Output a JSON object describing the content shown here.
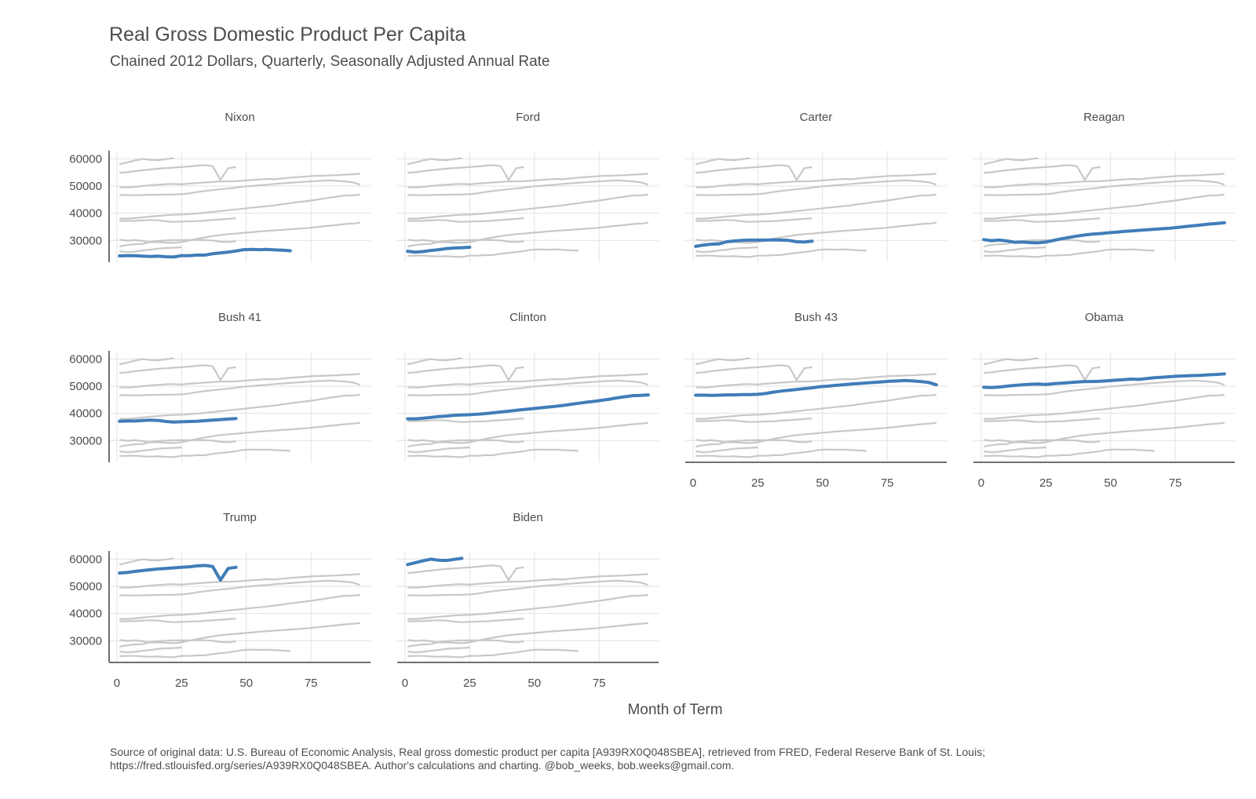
{
  "title": "Real Gross Domestic Product Per Capita",
  "subtitle": "Chained 2012 Dollars, Quarterly, Seasonally Adjusted Annual Rate",
  "xlabel": "Month of Term",
  "caption": [
    "Source of original data: U.S. Bureau of Economic Analysis, Real gross domestic product per capita [A939RX0Q048SBEA], retrieved from FRED, Federal Reserve Bank of St. Louis;",
    "https://fred.stlouisfed.org/series/A939RX0Q048SBEA. Author's calculations and charting. @bob_weeks, bob.weeks@gmail.com."
  ],
  "colors": {
    "highlight": "#3f7db8",
    "background_series": "#c8c8c8",
    "grid": "#e2e2e2",
    "axis": "#707070"
  },
  "chart_data": {
    "type": "line",
    "layout": "small multiples, 4 columns; each panel highlights one president's term against all others",
    "x_ticks": [
      0,
      25,
      50,
      75
    ],
    "y_ticks": [
      30000,
      40000,
      50000,
      60000
    ],
    "xlim": [
      -3,
      98
    ],
    "ylim": [
      22000,
      63000
    ],
    "grid": true,
    "series": [
      {
        "name": "Nixon",
        "x": [
          1,
          4,
          7,
          10,
          13,
          16,
          19,
          22,
          25,
          28,
          31,
          34,
          37,
          40,
          43,
          46,
          49,
          52,
          55,
          58,
          61,
          64,
          67
        ],
        "y": [
          24300,
          24400,
          24400,
          24200,
          24100,
          24200,
          24000,
          23900,
          24400,
          24400,
          24600,
          24600,
          25100,
          25400,
          25700,
          26100,
          26600,
          26700,
          26600,
          26700,
          26500,
          26400,
          26200
        ]
      },
      {
        "name": "Ford",
        "x": [
          1,
          4,
          7,
          10,
          13,
          16,
          19,
          22,
          25
        ],
        "y": [
          26000,
          25700,
          25900,
          26300,
          26600,
          27000,
          27200,
          27300,
          27500
        ]
      },
      {
        "name": "Carter",
        "x": [
          1,
          4,
          7,
          10,
          13,
          16,
          19,
          22,
          25,
          28,
          31,
          34,
          37,
          40,
          43,
          46
        ],
        "y": [
          27800,
          28300,
          28600,
          28700,
          29500,
          29800,
          30000,
          30100,
          30100,
          30100,
          30200,
          30100,
          30000,
          29500,
          29400,
          29700
        ]
      },
      {
        "name": "Reagan",
        "x": [
          1,
          4,
          7,
          10,
          13,
          16,
          19,
          22,
          25,
          28,
          31,
          34,
          37,
          40,
          43,
          46,
          49,
          52,
          55,
          58,
          61,
          64,
          67,
          70,
          73,
          76,
          79,
          82,
          85,
          88,
          91,
          94
        ],
        "y": [
          30300,
          29900,
          30100,
          29800,
          29300,
          29400,
          29200,
          29100,
          29400,
          30000,
          30600,
          31100,
          31600,
          32000,
          32300,
          32500,
          32800,
          33000,
          33300,
          33500,
          33700,
          33900,
          34100,
          34300,
          34500,
          34800,
          35100,
          35400,
          35700,
          36000,
          36200,
          36500
        ]
      },
      {
        "name": "Bush 41",
        "x": [
          1,
          4,
          7,
          10,
          13,
          16,
          19,
          22,
          25,
          28,
          31,
          34,
          37,
          40,
          43,
          46
        ],
        "y": [
          37100,
          37200,
          37200,
          37400,
          37500,
          37400,
          37000,
          36800,
          36900,
          37000,
          37100,
          37300,
          37500,
          37700,
          37900,
          38100
        ]
      },
      {
        "name": "Clinton",
        "x": [
          1,
          4,
          7,
          10,
          13,
          16,
          19,
          22,
          25,
          28,
          31,
          34,
          37,
          40,
          43,
          46,
          49,
          52,
          55,
          58,
          61,
          64,
          67,
          70,
          73,
          76,
          79,
          82,
          85,
          88,
          91,
          94
        ],
        "y": [
          38000,
          38000,
          38200,
          38500,
          38800,
          39000,
          39300,
          39400,
          39500,
          39700,
          39900,
          40200,
          40500,
          40800,
          41100,
          41400,
          41700,
          42000,
          42300,
          42600,
          42900,
          43300,
          43700,
          44100,
          44400,
          44800,
          45200,
          45700,
          46100,
          46500,
          46600,
          46800
        ]
      },
      {
        "name": "Bush 43",
        "x": [
          1,
          4,
          7,
          10,
          13,
          16,
          19,
          22,
          25,
          28,
          31,
          34,
          37,
          40,
          43,
          46,
          49,
          52,
          55,
          58,
          61,
          64,
          67,
          70,
          73,
          76,
          79,
          82,
          85,
          88,
          91,
          94
        ],
        "y": [
          46700,
          46700,
          46600,
          46700,
          46800,
          46800,
          46900,
          46900,
          47000,
          47300,
          47800,
          48200,
          48500,
          48800,
          49100,
          49400,
          49800,
          50000,
          50300,
          50500,
          50800,
          51000,
          51200,
          51400,
          51600,
          51800,
          51900,
          52100,
          51900,
          51700,
          51400,
          50500
        ]
      },
      {
        "name": "Obama",
        "x": [
          1,
          4,
          7,
          10,
          13,
          16,
          19,
          22,
          25,
          28,
          31,
          34,
          37,
          40,
          43,
          46,
          49,
          52,
          55,
          58,
          61,
          64,
          67,
          70,
          73,
          76,
          79,
          82,
          85,
          88,
          91,
          94
        ],
        "y": [
          49600,
          49500,
          49700,
          50000,
          50300,
          50500,
          50700,
          50800,
          50600,
          50900,
          51100,
          51300,
          51500,
          51700,
          51700,
          51800,
          52000,
          52200,
          52400,
          52600,
          52500,
          52800,
          53100,
          53300,
          53500,
          53700,
          53800,
          53900,
          54000,
          54200,
          54300,
          54500
        ]
      },
      {
        "name": "Trump",
        "x": [
          1,
          4,
          7,
          10,
          13,
          16,
          19,
          22,
          25,
          28,
          31,
          34,
          37,
          40,
          43,
          46
        ],
        "y": [
          54900,
          55100,
          55500,
          55800,
          56100,
          56400,
          56600,
          56800,
          57000,
          57200,
          57500,
          57700,
          57300,
          52300,
          56600,
          57000
        ]
      },
      {
        "name": "Biden",
        "x": [
          1,
          4,
          7,
          10,
          13,
          16,
          19,
          22
        ],
        "y": [
          58000,
          58700,
          59400,
          60000,
          59600,
          59500,
          59900,
          60300
        ]
      }
    ],
    "panels": [
      {
        "title": "Nixon",
        "highlight": "Nixon",
        "x_axis_labels": false
      },
      {
        "title": "Ford",
        "highlight": "Ford",
        "x_axis_labels": false
      },
      {
        "title": "Carter",
        "highlight": "Carter",
        "x_axis_labels": false
      },
      {
        "title": "Reagan",
        "highlight": "Reagan",
        "x_axis_labels": false
      },
      {
        "title": "Bush 41",
        "highlight": "Bush 41",
        "x_axis_labels": false
      },
      {
        "title": "Clinton",
        "highlight": "Clinton",
        "x_axis_labels": false
      },
      {
        "title": "Bush 43",
        "highlight": "Bush 43",
        "x_axis_labels": true
      },
      {
        "title": "Obama",
        "highlight": "Obama",
        "x_axis_labels": true
      },
      {
        "title": "Trump",
        "highlight": "Trump",
        "x_axis_labels": true
      },
      {
        "title": "Biden",
        "highlight": "Biden",
        "x_axis_labels": true
      }
    ]
  }
}
